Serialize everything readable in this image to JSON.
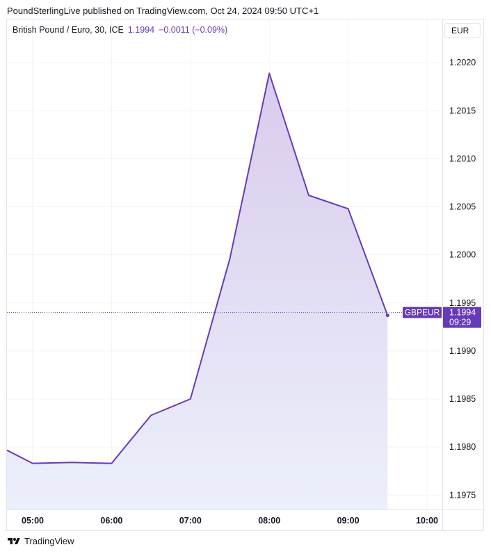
{
  "header": {
    "text": "PoundSterlingLive published on TradingView.com, Oct 24, 2024 09:50 UTC+1"
  },
  "legend": {
    "symbol": "British Pound / Euro, 30, ICE",
    "value": "1.1994",
    "change": "−0.0011 (−0.09%)"
  },
  "currency_button": "EUR",
  "price_label": {
    "name": "GBPEUR",
    "value": "1.1994",
    "countdown": "09:29"
  },
  "footer": {
    "brand": "TradingView"
  },
  "colors": {
    "line": "#673ab7",
    "fill_top": "#d9cbec",
    "fill_bottom": "#ecf0fb",
    "grid": "#f0f3fa",
    "axis_border": "#e0e3eb"
  },
  "chart_data": {
    "type": "area",
    "x": [
      "04:30",
      "05:00",
      "05:30",
      "06:00",
      "06:30",
      "07:00",
      "07:30",
      "08:00",
      "08:30",
      "09:00",
      "09:30"
    ],
    "values": [
      1.19804,
      1.19783,
      1.19784,
      1.19783,
      1.19833,
      1.1985,
      1.19996,
      1.20189,
      1.20062,
      1.20048,
      1.19937
    ],
    "x_ticks": [
      "05:00",
      "06:00",
      "07:00",
      "08:00",
      "09:00",
      "10:00"
    ],
    "y_ticks": [
      "1.2020",
      "1.2015",
      "1.2010",
      "1.2005",
      "1.2000",
      "1.1995",
      "1.1990",
      "1.1985",
      "1.1980",
      "1.1975"
    ],
    "ylim": [
      1.19735,
      1.20245
    ],
    "last_value": 1.1994,
    "grid": true
  }
}
